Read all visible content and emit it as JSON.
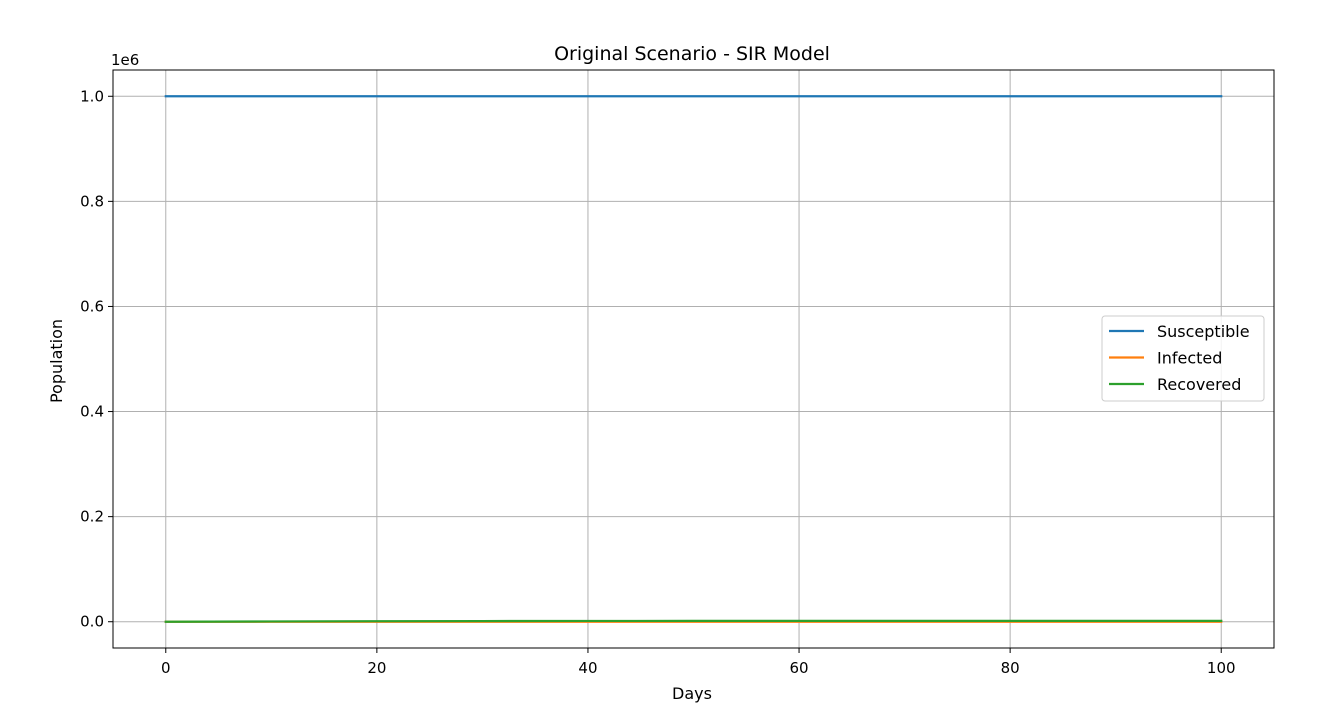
{
  "chart_data": {
    "type": "line",
    "title": "Original Scenario - SIR Model",
    "xlabel": "Days",
    "ylabel": "Population",
    "y_offset_label": "1e6",
    "xlim": [
      -5,
      105
    ],
    "ylim": [
      -0.05,
      1.05
    ],
    "x_ticks": [
      0,
      20,
      40,
      60,
      80,
      100
    ],
    "y_ticks": [
      0.0,
      0.2,
      0.4,
      0.6,
      0.8,
      1.0
    ],
    "x_tick_labels": [
      "0",
      "20",
      "40",
      "60",
      "80",
      "100"
    ],
    "y_tick_labels": [
      "0.0",
      "0.2",
      "0.4",
      "0.6",
      "0.8",
      "1.0"
    ],
    "grid": true,
    "legend_position": "center-right",
    "x": [
      0,
      10,
      20,
      30,
      40,
      50,
      60,
      70,
      80,
      90,
      100
    ],
    "series": [
      {
        "name": "Susceptible",
        "color": "#1f77b4",
        "values": [
          1.0,
          1.0,
          1.0,
          1.0,
          1.0,
          1.0,
          1.0,
          1.0,
          1.0,
          1.0,
          1.0
        ]
      },
      {
        "name": "Infected",
        "color": "#ff7f0e",
        "values": [
          0.0,
          0.0,
          0.0,
          0.0,
          0.0,
          0.0,
          0.0,
          0.0,
          0.0,
          0.0,
          0.0
        ]
      },
      {
        "name": "Recovered",
        "color": "#2ca02c",
        "values": [
          0.0,
          0.0005,
          0.001,
          0.0013,
          0.0015,
          0.0016,
          0.0016,
          0.0016,
          0.0016,
          0.0016,
          0.0016
        ]
      }
    ]
  }
}
